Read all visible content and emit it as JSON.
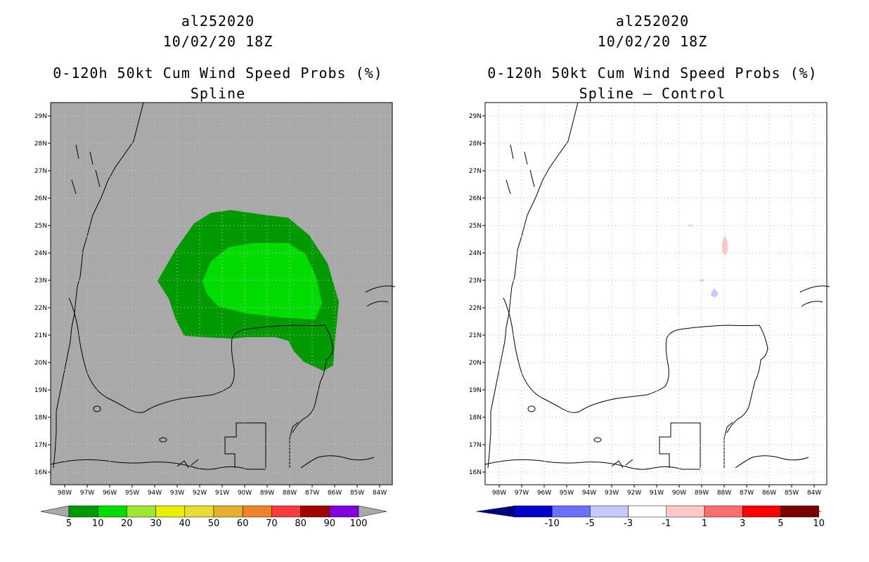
{
  "panels": [
    {
      "storm_id": "al252020",
      "datetime": "10/02/20 18Z",
      "product": "0-120h 50kt Cum Wind Speed Probs (%)",
      "method": "Spline",
      "colorbar": {
        "labels": [
          "5",
          "10",
          "20",
          "30",
          "40",
          "50",
          "60",
          "70",
          "80",
          "90",
          "100"
        ],
        "colors": [
          "#009a00",
          "#00dc00",
          "#a0e632",
          "#e6f000",
          "#e6dc32",
          "#e6af2d",
          "#f08228",
          "#fa3c3c",
          "#a00000",
          "#8200dc"
        ],
        "background": "#a9a9a9"
      }
    },
    {
      "storm_id": "al252020",
      "datetime": "10/02/20 18Z",
      "product": "0-120h 50kt Cum Wind Speed Probs (%)",
      "method": "Spline – Control",
      "colorbar": {
        "labels": [
          "-10",
          "-5",
          "-3",
          "-1",
          "1",
          "3",
          "5",
          "10"
        ],
        "colors": [
          "#0000c8",
          "#6e6eff",
          "#c8c8ff",
          "#ffffff",
          "#ffc8c8",
          "#ff6e6e",
          "#ff0000",
          "#780000"
        ],
        "background": "#ffffff"
      }
    }
  ],
  "lat_labels": [
    "29N",
    "28N",
    "27N",
    "26N",
    "25N",
    "24N",
    "23N",
    "22N",
    "21N",
    "20N",
    "19N",
    "18N",
    "17N",
    "16N"
  ],
  "lon_labels": [
    "98W",
    "97W",
    "96W",
    "95W",
    "94W",
    "93W",
    "92W",
    "91W",
    "90W",
    "89W",
    "88W",
    "87W",
    "86W",
    "85W",
    "84W"
  ]
}
